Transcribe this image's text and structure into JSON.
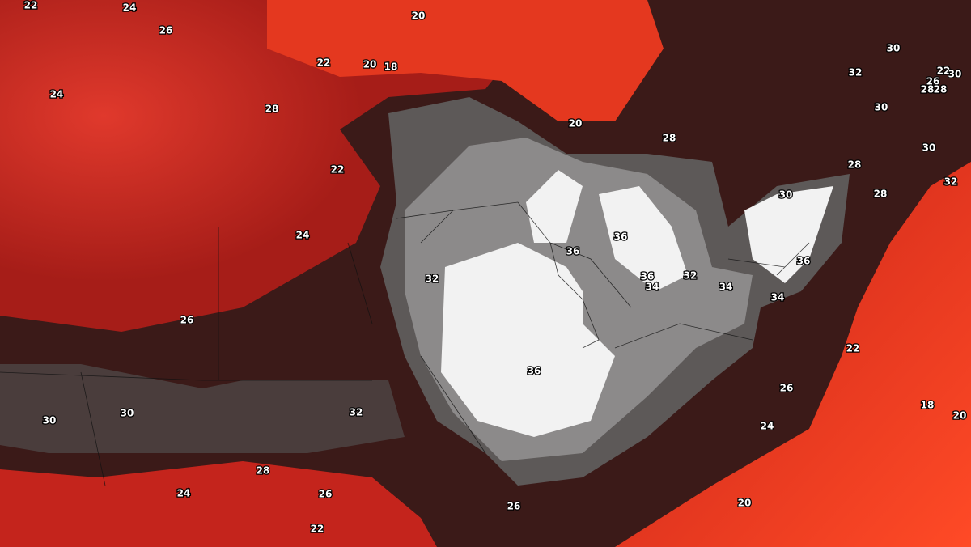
{
  "contour_labels": [
    "22",
    "24",
    "26",
    "20",
    "22",
    "20",
    "18",
    "24",
    "28",
    "20",
    "28",
    "30",
    "32",
    "22",
    "26",
    "30",
    "28",
    "28",
    "30",
    "30",
    "28",
    "28",
    "30",
    "32",
    "22",
    "24",
    "36",
    "36",
    "36",
    "32",
    "36",
    "32",
    "34",
    "34",
    "34",
    "26",
    "22",
    "36",
    "26",
    "32",
    "30",
    "30",
    "18",
    "20",
    "24",
    "28",
    "24",
    "26",
    "26",
    "20",
    "22"
  ]
}
